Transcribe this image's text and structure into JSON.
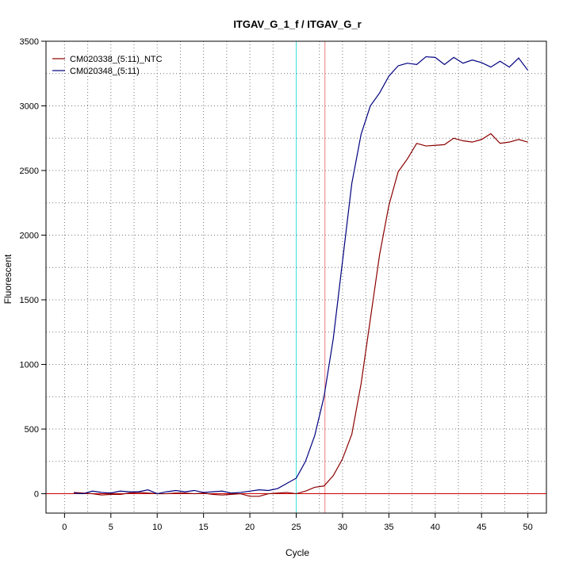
{
  "chart_data": {
    "type": "line",
    "title": "ITGAV_G_1_f / ITGAV_G_r",
    "xlabel": "Cycle",
    "ylabel": "Fluorescent",
    "xlim": [
      -2,
      52
    ],
    "ylim": [
      -150,
      3500
    ],
    "x_ticks": [
      0,
      5,
      10,
      15,
      20,
      25,
      30,
      35,
      40,
      45,
      50
    ],
    "y_ticks": [
      0,
      500,
      1000,
      1500,
      2000,
      2500,
      3000,
      3500
    ],
    "y_minor_grid": [
      250,
      750,
      1250,
      1750,
      2250,
      2750,
      3250
    ],
    "x_grid_minor": [
      2.5,
      7.5,
      12.5,
      17.5,
      22.5,
      27.5,
      32.5,
      37.5,
      42.5,
      47.5
    ],
    "legend_position": "top-left",
    "horizontal_line": {
      "y": 0,
      "color": "#cc0000"
    },
    "vertical_lines": [
      {
        "x": 25,
        "color": "#40e0e0"
      },
      {
        "x": 28.1,
        "color": "#f08080"
      }
    ],
    "series": [
      {
        "name": "CM020338_(5:11)_NTC",
        "color": "#8b0000",
        "x": [
          1,
          2,
          3,
          4,
          5,
          6,
          7,
          8,
          9,
          10,
          11,
          12,
          13,
          14,
          15,
          16,
          17,
          18,
          19,
          20,
          21,
          22,
          23,
          24,
          25,
          26,
          27,
          28,
          29,
          30,
          31,
          32,
          33,
          34,
          35,
          36,
          37,
          38,
          39,
          40,
          41,
          42,
          43,
          44,
          45,
          46,
          47,
          48,
          49,
          50
        ],
        "values": [
          10,
          5,
          0,
          -10,
          -5,
          -5,
          5,
          10,
          5,
          0,
          0,
          5,
          5,
          0,
          5,
          -5,
          -10,
          -5,
          0,
          -20,
          -20,
          0,
          5,
          10,
          0,
          20,
          50,
          60,
          140,
          270,
          460,
          850,
          1350,
          1850,
          2230,
          2490,
          2590,
          2710,
          2690,
          2695,
          2700,
          2750,
          2730,
          2720,
          2740,
          2785,
          2710,
          2720,
          2740,
          2720
        ]
      },
      {
        "name": "CM020348_(5:11)",
        "color": "#00007f",
        "x": [
          1,
          2,
          3,
          4,
          5,
          6,
          7,
          8,
          9,
          10,
          11,
          12,
          13,
          14,
          15,
          16,
          17,
          18,
          19,
          20,
          21,
          22,
          23,
          24,
          25,
          26,
          27,
          28,
          29,
          30,
          31,
          32,
          33,
          34,
          35,
          36,
          37,
          38,
          39,
          40,
          41,
          42,
          43,
          44,
          45,
          46,
          47,
          48,
          49,
          50
        ],
        "values": [
          5,
          0,
          20,
          10,
          5,
          20,
          15,
          15,
          30,
          0,
          15,
          25,
          15,
          25,
          10,
          15,
          20,
          5,
          10,
          20,
          30,
          25,
          40,
          80,
          120,
          250,
          450,
          750,
          1200,
          1800,
          2400,
          2780,
          3000,
          3100,
          3230,
          3310,
          3330,
          3320,
          3380,
          3375,
          3320,
          3375,
          3330,
          3355,
          3335,
          3300,
          3345,
          3300,
          3370,
          3275
        ]
      }
    ]
  }
}
